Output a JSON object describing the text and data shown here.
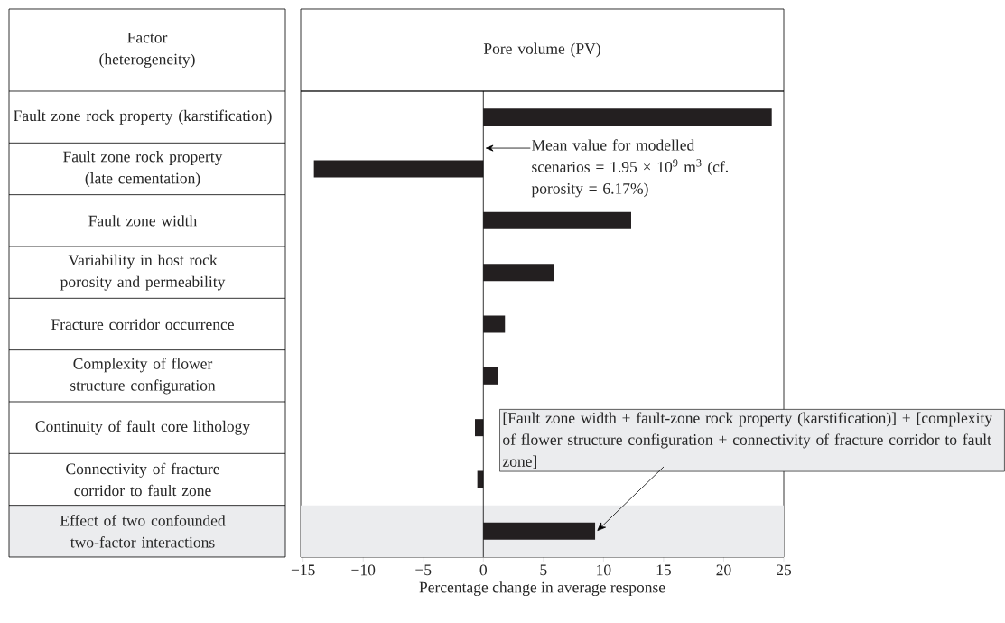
{
  "chart_data": {
    "type": "bar",
    "orientation": "horizontal",
    "title": "Pore volume (PV)",
    "ylabel": "Factor (heterogeneity)",
    "xlabel": "Percentage change in average response",
    "categories": [
      "Fault zone rock property (karstification)",
      "Fault zone rock property (late cementation)",
      "Fault zone width",
      "Variability in host rock porosity and permeability",
      "Fracture corridor occurrence",
      "Complexity of flower structure configuration",
      "Continuity of fault core lithology",
      "Connectivity of fracture corridor to fault zone",
      "Effect of two confounded two-factor interactions"
    ],
    "values": [
      24.0,
      -14.1,
      12.3,
      5.9,
      1.8,
      1.2,
      -0.7,
      -0.5,
      9.3
    ],
    "color": "#231f20",
    "xlim": [
      -15.2,
      25
    ],
    "xticks": [
      {
        "value": -15,
        "label": "−15"
      },
      {
        "value": -10,
        "label": "−10"
      },
      {
        "value": -5,
        "label": "−5"
      },
      0,
      5,
      10,
      15,
      20,
      25
    ],
    "annotations": [
      "Mean value for modelled scenarios = 1.95 × 10$^{9}$ m$^{3}$ (cf. porosity = 6.17%)",
      {
        "text": "[Fault zone width + fault-zone rock property (karstification)] + [complexity of flower structure configuration + connectivity of fracture corridor to fault zone]",
        "x": 9.3,
        "y": "Effect of two confounded two-factor interactions"
      }
    ]
  }
}
